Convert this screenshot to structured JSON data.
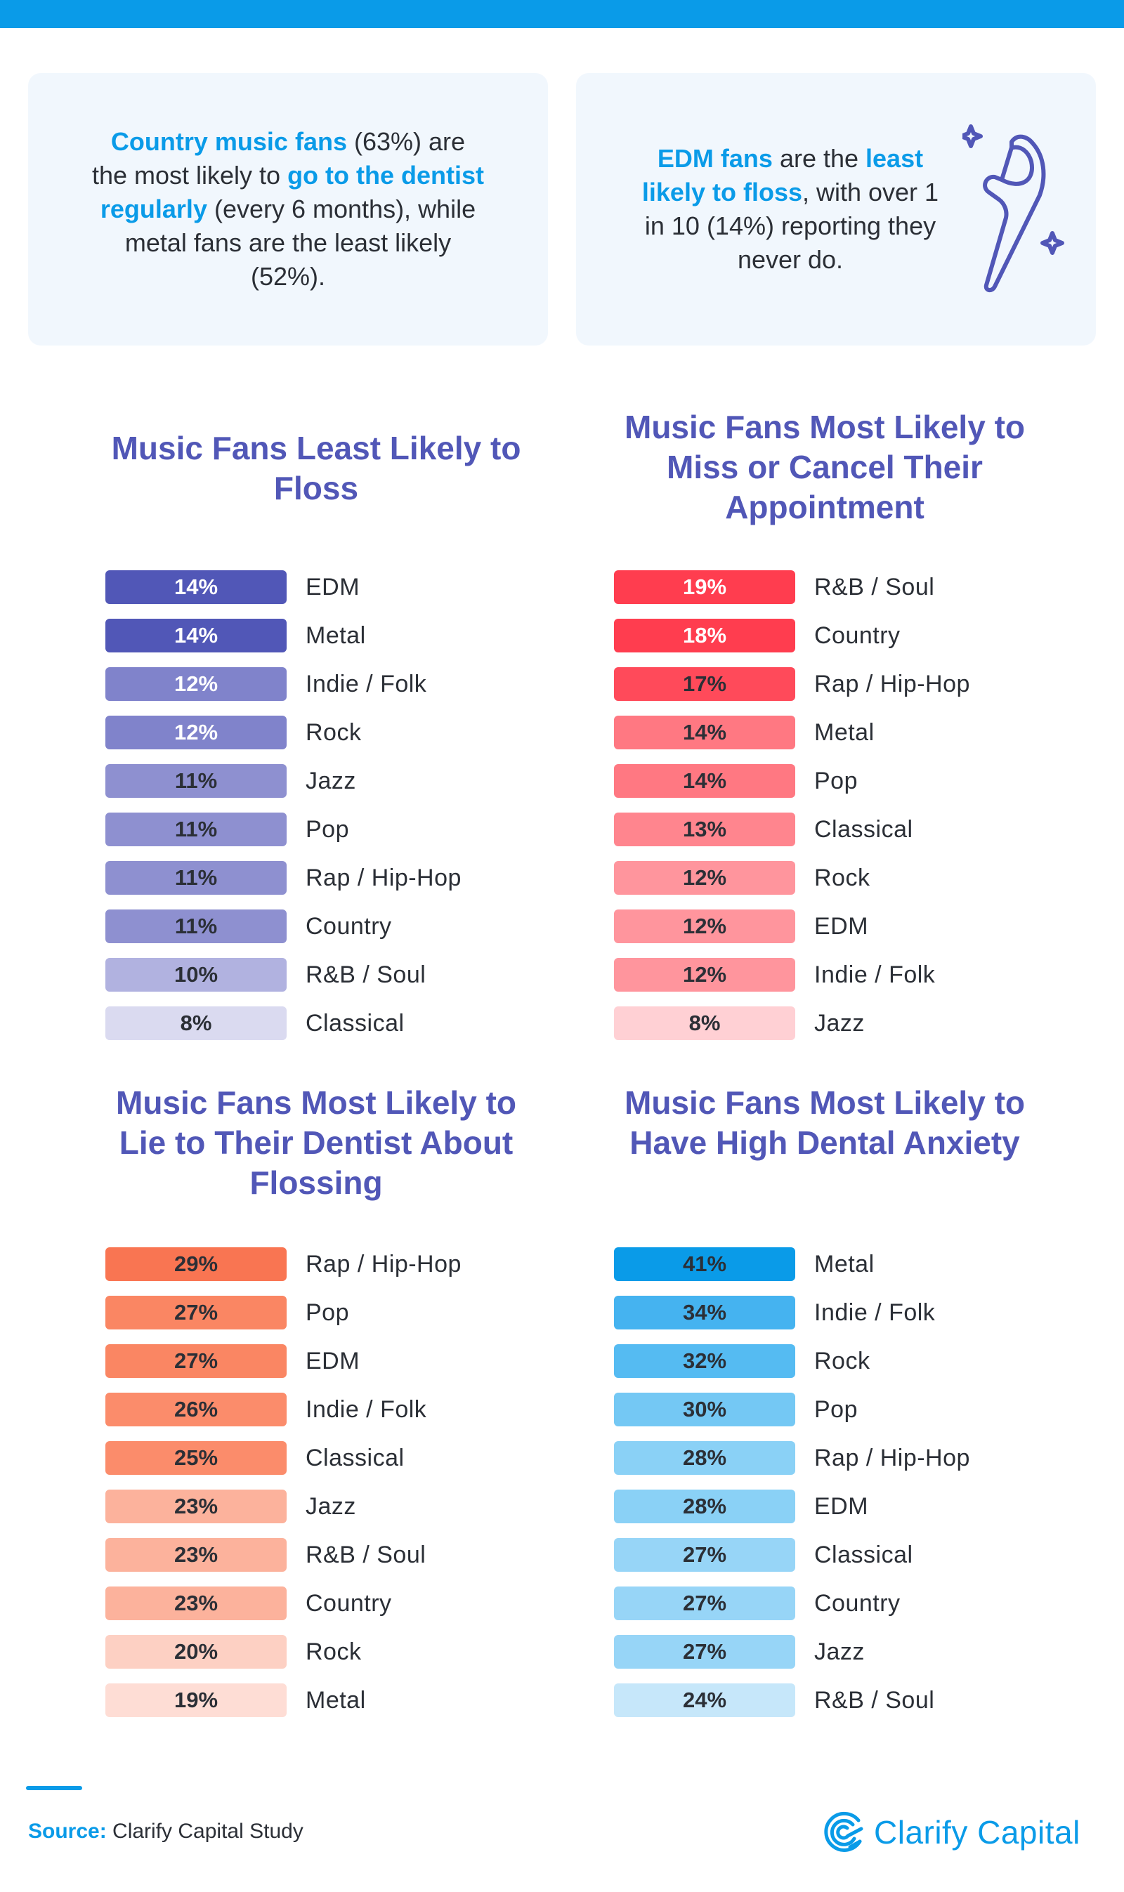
{
  "colors": {
    "accent_blue": "#0A9BE8",
    "title_purple": "#5157B7",
    "text_dark": "#2b2f36",
    "callout_bg": "#f1f7fd"
  },
  "callouts": {
    "left": {
      "parts": [
        {
          "text": "Country music fans",
          "highlight": true
        },
        {
          "text": " (63%) are the most likely to ",
          "highlight": false
        },
        {
          "text": "go to the dentist regularly",
          "highlight": true
        },
        {
          "text": " (every 6 months), while metal fans are the least likely (52%).",
          "highlight": false
        }
      ]
    },
    "right": {
      "parts": [
        {
          "text": "EDM fans",
          "highlight": true
        },
        {
          "text": " are the ",
          "highlight": false
        },
        {
          "text": "least likely to floss",
          "highlight": true
        },
        {
          "text": ", with over 1 in 10 (14%) reporting they never do.",
          "highlight": false
        }
      ],
      "icon": "floss-pick-icon"
    }
  },
  "chart_data": [
    {
      "type": "bar",
      "orientation": "horizontal",
      "title": "Music Fans Least Likely to Floss",
      "categories": [
        "EDM",
        "Metal",
        "Indie / Folk",
        "Rock",
        "Jazz",
        "Pop",
        "Rap / Hip-Hop",
        "Country",
        "R&B / Soul",
        "Classical"
      ],
      "values": [
        14,
        14,
        12,
        12,
        11,
        11,
        11,
        11,
        10,
        8
      ],
      "labels": [
        "14%",
        "14%",
        "12%",
        "12%",
        "11%",
        "11%",
        "11%",
        "11%",
        "10%",
        "8%"
      ],
      "colors": [
        "#5157B7",
        "#5157B7",
        "#8083CB",
        "#8083CB",
        "#8E90D0",
        "#8E90D0",
        "#8E90D0",
        "#8E90D0",
        "#B1B2E0",
        "#DADAF0"
      ],
      "label_light": [
        true,
        true,
        true,
        true,
        false,
        false,
        false,
        false,
        false,
        false
      ],
      "unit": "%"
    },
    {
      "type": "bar",
      "orientation": "horizontal",
      "title": "Music Fans Most Likely to Miss or Cancel Their Appointment",
      "categories": [
        "R&B / Soul",
        "Country",
        "Rap / Hip-Hop",
        "Metal",
        "Pop",
        "Classical",
        "Rock",
        "EDM",
        "Indie / Folk",
        "Jazz"
      ],
      "values": [
        19,
        18,
        17,
        14,
        14,
        13,
        12,
        12,
        12,
        8
      ],
      "labels": [
        "19%",
        "18%",
        "17%",
        "14%",
        "14%",
        "13%",
        "12%",
        "12%",
        "12%",
        "8%"
      ],
      "colors": [
        "#FF3D4F",
        "#FF3D4F",
        "#FF4A5A",
        "#FF7882",
        "#FF7882",
        "#FF858E",
        "#FF959D",
        "#FF959D",
        "#FF959D",
        "#FFD0D4"
      ],
      "label_light": [
        true,
        true,
        false,
        false,
        false,
        false,
        false,
        false,
        false,
        false
      ],
      "unit": "%"
    },
    {
      "type": "bar",
      "orientation": "horizontal",
      "title": "Music Fans Most Likely to Lie to Their Dentist About Flossing",
      "categories": [
        "Rap / Hip-Hop",
        "Pop",
        "EDM",
        "Indie / Folk",
        "Classical",
        "Jazz",
        "R&B / Soul",
        "Country",
        "Rock",
        "Metal"
      ],
      "values": [
        29,
        27,
        27,
        26,
        25,
        23,
        23,
        23,
        20,
        19
      ],
      "labels": [
        "29%",
        "27%",
        "27%",
        "26%",
        "25%",
        "23%",
        "23%",
        "23%",
        "20%",
        "19%"
      ],
      "colors": [
        "#F97552",
        "#FA8663",
        "#FA8663",
        "#FB8C6B",
        "#FB8C6B",
        "#FCB29C",
        "#FCB29C",
        "#FCB29C",
        "#FDD0C3",
        "#FEDDD5"
      ],
      "label_light": [
        false,
        false,
        false,
        false,
        false,
        false,
        false,
        false,
        false,
        false
      ],
      "unit": "%"
    },
    {
      "type": "bar",
      "orientation": "horizontal",
      "title": "Music Fans Most Likely to Have High Dental Anxiety",
      "categories": [
        "Metal",
        "Indie / Folk",
        "Rock",
        "Pop",
        "Rap / Hip-Hop",
        "EDM",
        "Classical",
        "Country",
        "Jazz",
        "R&B / Soul"
      ],
      "values": [
        41,
        34,
        32,
        30,
        28,
        28,
        27,
        27,
        27,
        24
      ],
      "labels": [
        "41%",
        "34%",
        "32%",
        "30%",
        "28%",
        "28%",
        "27%",
        "27%",
        "27%",
        "24%"
      ],
      "colors": [
        "#0A9BE8",
        "#45B3F0",
        "#55BBF2",
        "#74C8F4",
        "#8AD1F6",
        "#8AD1F6",
        "#97D5F7",
        "#97D5F7",
        "#97D5F7",
        "#C6E7FA"
      ],
      "label_light": [
        false,
        false,
        false,
        false,
        false,
        false,
        false,
        false,
        false,
        false
      ],
      "unit": "%"
    }
  ],
  "footer": {
    "source_label": "Source:",
    "source_text": " Clarify Capital Study",
    "logo_text": "Clarify Capital",
    "logo_icon": "clarify-capital-logo-icon"
  }
}
